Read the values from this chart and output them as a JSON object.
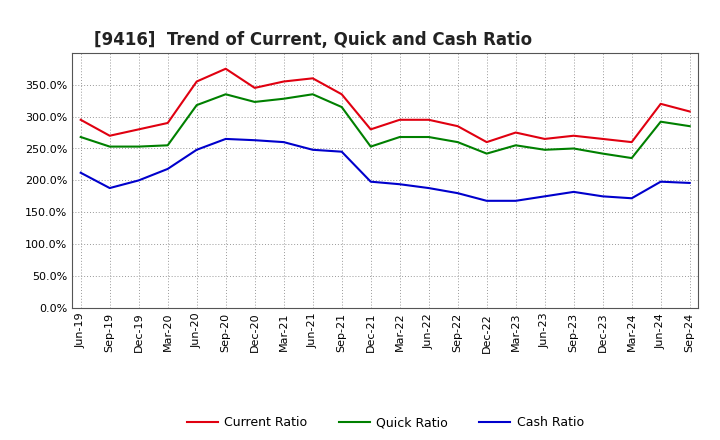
{
  "title": "[9416]  Trend of Current, Quick and Cash Ratio",
  "labels": [
    "Jun-19",
    "Sep-19",
    "Dec-19",
    "Mar-20",
    "Jun-20",
    "Sep-20",
    "Dec-20",
    "Mar-21",
    "Jun-21",
    "Sep-21",
    "Dec-21",
    "Mar-22",
    "Jun-22",
    "Sep-22",
    "Dec-22",
    "Mar-23",
    "Jun-23",
    "Sep-23",
    "Dec-23",
    "Mar-24",
    "Jun-24",
    "Sep-24"
  ],
  "current_ratio": [
    295,
    270,
    280,
    290,
    355,
    375,
    345,
    355,
    360,
    335,
    280,
    295,
    295,
    285,
    260,
    275,
    265,
    270,
    265,
    260,
    320,
    308
  ],
  "quick_ratio": [
    268,
    253,
    253,
    255,
    318,
    335,
    323,
    328,
    335,
    315,
    253,
    268,
    268,
    260,
    242,
    255,
    248,
    250,
    242,
    235,
    292,
    285
  ],
  "cash_ratio": [
    212,
    188,
    200,
    218,
    248,
    265,
    263,
    260,
    248,
    245,
    198,
    194,
    188,
    180,
    168,
    168,
    175,
    182,
    175,
    172,
    198,
    196
  ],
  "current_color": "#e00010",
  "quick_color": "#008000",
  "cash_color": "#0000cc",
  "bg_color": "#ffffff",
  "plot_bg_color": "#ffffff",
  "grid_color": "#999999",
  "ylim": [
    0,
    400
  ],
  "yticks": [
    0,
    50,
    100,
    150,
    200,
    250,
    300,
    350
  ],
  "title_fontsize": 12,
  "legend_fontsize": 9,
  "tick_fontsize": 8
}
